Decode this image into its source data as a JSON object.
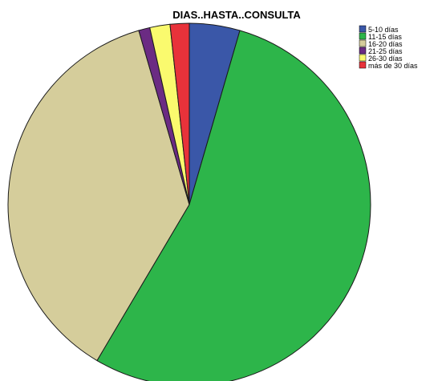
{
  "chart_data": {
    "type": "pie",
    "title": "DIAS..HASTA..CONSULTA",
    "categories": [
      "5-10 días",
      "11-15 días",
      "16-20 días",
      "21-25 días",
      "26-30 días",
      "más de 30 días"
    ],
    "values": [
      4.5,
      54.0,
      37.0,
      1.0,
      1.8,
      1.7
    ],
    "unit": "percent",
    "colors": [
      "#3A57A8",
      "#2DB54A",
      "#D5CD9B",
      "#6B2B83",
      "#FAFA6E",
      "#E8323A"
    ],
    "legend_position": "top-right",
    "start_angle": "12 o'clock, clockwise"
  }
}
